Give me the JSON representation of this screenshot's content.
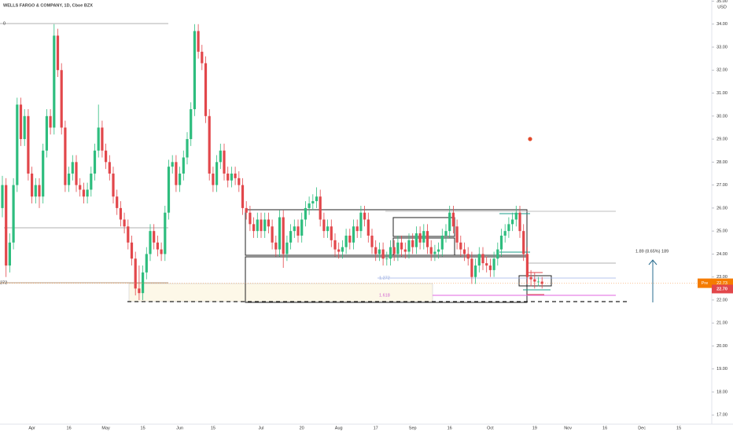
{
  "chart_data": {
    "type": "candlestick",
    "title": "WELLS FARGO & COMPANY, 1D, Cboe BZX",
    "currency": "USD",
    "categories": [
      null,
      null,
      null,
      null,
      null,
      null,
      null,
      null,
      "Apr",
      null,
      null,
      null,
      null,
      null,
      null,
      null,
      null,
      null,
      "16",
      null,
      null,
      null,
      null,
      null,
      null,
      null,
      null,
      null,
      "May",
      null,
      null,
      null,
      null,
      null,
      null,
      null,
      null,
      null,
      "15",
      null,
      null,
      null,
      null,
      null,
      null,
      null,
      null,
      null,
      "Jun",
      null,
      null,
      null,
      null,
      null,
      null,
      null,
      null,
      "15",
      null,
      null,
      null,
      null,
      null,
      null,
      null,
      null,
      null,
      null,
      null,
      null,
      "Jul",
      null,
      null,
      null,
      null,
      null,
      null,
      null,
      null,
      null,
      null,
      "20",
      null,
      null,
      null,
      null,
      null,
      null,
      null,
      null,
      null,
      "Aug",
      null,
      null,
      null,
      null,
      null,
      null,
      null,
      null,
      null,
      "17",
      null,
      null,
      null,
      null,
      null,
      null,
      null,
      null,
      null,
      "Sep",
      null,
      null,
      null,
      null,
      null,
      null,
      null,
      null,
      null,
      "16",
      null,
      null,
      null,
      null,
      null,
      null,
      null,
      null,
      null,
      null,
      "Oct",
      null,
      null,
      null,
      null,
      null,
      null,
      null,
      null,
      null,
      null,
      null,
      "19",
      null,
      null,
      null,
      null,
      null,
      null,
      null,
      null,
      "Nov",
      null,
      null,
      null,
      null,
      null,
      null,
      null,
      null,
      null,
      "16",
      null,
      null,
      null,
      null,
      null,
      null,
      null,
      null,
      null,
      "Dec",
      null,
      null,
      null,
      null,
      null,
      null,
      null,
      null,
      null,
      "15"
    ],
    "open": [
      26.0,
      27.0,
      23.5,
      24.5,
      27.0,
      30.5,
      29.0,
      30.0,
      27.5,
      26.5,
      27.0,
      26.5,
      28.5,
      30.0,
      29.5,
      33.5,
      32.0,
      29.5,
      27.0,
      27.5,
      28.0,
      27.0,
      26.8,
      26.5,
      26.8,
      27.5,
      28.5,
      29.5,
      28.5,
      28.0,
      27.5,
      26.5,
      26.0,
      25.5,
      25.2,
      24.5,
      23.8,
      22.5,
      22.3,
      23.2,
      24.0,
      25.0,
      24.5,
      24.2,
      24.0,
      25.8,
      27.8,
      28.0,
      27.0,
      27.5,
      28.2,
      29.0,
      30.3,
      33.7,
      32.8,
      32.3,
      30.0,
      27.5,
      27.0,
      28.0,
      28.5,
      27.5,
      27.2,
      27.5,
      27.3,
      27.0,
      26.0,
      25.8,
      25.3,
      25.0,
      25.5,
      25.0,
      25.5,
      25.2,
      24.5,
      24.2,
      25.6,
      24.0,
      24.5,
      25.0,
      25.2,
      24.8,
      25.5,
      26.0,
      26.2,
      26.3,
      26.5,
      25.5,
      25.0,
      25.2,
      24.6,
      24.2,
      24.1,
      24.3,
      24.8,
      24.5,
      25.2,
      25.0,
      25.8,
      25.5,
      24.8,
      24.3,
      24.0,
      24.2,
      23.8,
      23.8,
      24.3,
      24.0,
      24.5,
      24.2,
      24.1,
      24.6,
      24.3,
      24.9,
      24.5,
      25.0,
      24.3,
      24.0,
      24.1,
      24.2,
      24.8,
      25.0,
      25.8,
      25.2,
      24.5,
      24.2,
      24.0,
      23.8,
      23.0,
      23.5,
      24.0,
      23.6,
      23.5,
      23.3,
      23.8,
      24.2,
      24.8,
      25.0,
      25.3,
      25.5,
      25.8,
      25.0,
      24.0,
      23.0,
      22.9,
      22.8,
      22.8,
      null,
      null,
      null,
      null,
      null,
      null,
      null,
      null,
      null,
      null,
      null,
      null,
      null,
      null,
      null,
      null,
      null,
      null,
      null,
      null,
      null,
      null,
      null,
      null,
      null,
      null,
      null,
      null,
      null,
      null,
      null,
      null,
      null,
      null,
      null,
      null,
      null
    ],
    "high": [
      27.4,
      27.3,
      24.9,
      27.3,
      30.8,
      30.8,
      30.3,
      30.3,
      27.8,
      27.3,
      27.3,
      28.8,
      30.3,
      30.3,
      34.0,
      33.8,
      32.3,
      29.8,
      27.8,
      28.3,
      28.3,
      27.3,
      27.1,
      27.1,
      27.8,
      28.8,
      30.5,
      29.8,
      28.8,
      28.3,
      27.8,
      26.8,
      26.3,
      25.8,
      25.5,
      24.8,
      24.1,
      23.5,
      23.5,
      24.3,
      25.3,
      25.3,
      24.8,
      24.5,
      26.1,
      28.1,
      28.3,
      28.3,
      27.8,
      28.5,
      29.3,
      30.6,
      34.0,
      34.0,
      33.1,
      32.6,
      30.3,
      27.8,
      28.3,
      28.8,
      28.8,
      27.8,
      27.8,
      27.8,
      27.6,
      27.3,
      26.3,
      26.1,
      25.6,
      25.8,
      25.8,
      25.8,
      25.8,
      25.5,
      24.8,
      25.9,
      25.9,
      24.8,
      25.3,
      25.5,
      25.5,
      25.8,
      26.3,
      26.5,
      26.6,
      26.9,
      26.8,
      25.8,
      25.5,
      25.5,
      24.9,
      24.5,
      24.6,
      25.1,
      25.1,
      25.5,
      25.5,
      26.1,
      26.1,
      25.8,
      25.1,
      24.6,
      24.5,
      24.5,
      24.1,
      24.6,
      24.6,
      24.8,
      24.8,
      24.5,
      24.9,
      24.9,
      25.2,
      25.2,
      25.3,
      25.3,
      24.6,
      24.4,
      24.5,
      25.1,
      25.3,
      26.1,
      26.1,
      25.5,
      24.8,
      24.5,
      24.3,
      24.1,
      23.8,
      24.3,
      24.3,
      23.9,
      23.8,
      24.1,
      24.5,
      25.1,
      25.3,
      25.6,
      25.8,
      26.1,
      26.1,
      25.3,
      24.3,
      23.3,
      23.2,
      23.0,
      23.0,
      null,
      null,
      null,
      null,
      null,
      null,
      null,
      null,
      null,
      null,
      null,
      null,
      null,
      null,
      null,
      null,
      null,
      null,
      null,
      null,
      null,
      null,
      null,
      null,
      null,
      null,
      null,
      null,
      null,
      null,
      null,
      null,
      null,
      null,
      null,
      null,
      null
    ],
    "low": [
      25.6,
      23.0,
      23.2,
      24.2,
      26.7,
      28.7,
      28.7,
      27.2,
      26.2,
      26.2,
      26.0,
      26.2,
      28.2,
      29.2,
      29.2,
      31.7,
      29.2,
      26.7,
      26.7,
      27.2,
      26.7,
      26.5,
      26.2,
      26.2,
      26.5,
      27.2,
      28.2,
      28.2,
      27.7,
      27.2,
      26.2,
      25.7,
      25.2,
      24.9,
      24.2,
      23.5,
      22.2,
      22.0,
      22.0,
      22.9,
      23.7,
      24.2,
      23.9,
      23.7,
      23.7,
      25.5,
      27.5,
      26.7,
      26.7,
      27.2,
      27.9,
      28.7,
      30.0,
      32.5,
      32.0,
      29.7,
      27.2,
      26.7,
      26.7,
      27.7,
      27.2,
      26.9,
      26.9,
      27.0,
      26.7,
      25.7,
      25.5,
      25.0,
      24.7,
      24.7,
      24.7,
      24.7,
      24.9,
      24.2,
      23.9,
      23.9,
      23.4,
      23.7,
      24.2,
      24.7,
      24.5,
      24.5,
      25.2,
      25.7,
      25.9,
      26.0,
      25.2,
      24.7,
      24.7,
      24.3,
      23.9,
      23.8,
      23.8,
      24.0,
      24.2,
      24.2,
      24.7,
      24.7,
      25.2,
      24.5,
      24.0,
      23.7,
      23.7,
      23.5,
      23.5,
      23.5,
      23.7,
      23.7,
      23.9,
      23.8,
      23.8,
      24.0,
      24.0,
      24.2,
      24.2,
      24.0,
      23.7,
      23.7,
      23.8,
      23.9,
      24.5,
      24.7,
      24.9,
      24.2,
      23.9,
      23.7,
      23.5,
      22.7,
      22.7,
      23.2,
      23.3,
      23.2,
      23.0,
      23.0,
      23.5,
      23.9,
      24.5,
      24.7,
      25.0,
      25.2,
      24.7,
      23.7,
      22.7,
      22.6,
      22.5,
      22.6,
      22.5,
      null,
      null,
      null,
      null,
      null,
      null,
      null,
      null,
      null,
      null,
      null,
      null,
      null,
      null,
      null,
      null,
      null,
      null,
      null,
      null,
      null,
      null,
      null,
      null,
      null,
      null,
      null,
      null,
      null,
      null,
      null,
      null,
      null,
      null,
      null,
      null,
      null
    ],
    "close": [
      27.0,
      23.5,
      24.5,
      27.0,
      30.5,
      29.0,
      30.0,
      27.5,
      26.5,
      27.0,
      26.5,
      28.5,
      30.0,
      29.5,
      33.5,
      32.0,
      29.5,
      27.0,
      27.5,
      28.0,
      27.0,
      26.8,
      26.5,
      26.8,
      27.5,
      28.5,
      29.5,
      28.5,
      28.0,
      27.5,
      26.5,
      26.0,
      25.5,
      25.2,
      24.5,
      23.8,
      22.5,
      22.3,
      23.2,
      24.0,
      25.0,
      24.5,
      24.2,
      24.0,
      25.8,
      27.8,
      28.0,
      27.0,
      27.5,
      28.2,
      29.0,
      30.3,
      33.7,
      32.8,
      32.3,
      30.0,
      27.5,
      27.0,
      28.0,
      28.5,
      27.5,
      27.2,
      27.5,
      27.3,
      27.0,
      26.0,
      25.8,
      25.3,
      25.0,
      25.5,
      25.0,
      25.5,
      25.2,
      24.5,
      24.2,
      25.6,
      24.0,
      24.5,
      25.0,
      25.2,
      24.8,
      25.5,
      26.0,
      26.2,
      26.3,
      26.5,
      25.5,
      25.0,
      25.2,
      24.6,
      24.2,
      24.1,
      24.3,
      24.8,
      24.5,
      25.2,
      25.0,
      25.8,
      25.5,
      24.8,
      24.3,
      24.0,
      24.2,
      23.8,
      23.8,
      24.3,
      24.0,
      24.5,
      24.2,
      24.1,
      24.6,
      24.3,
      24.9,
      24.5,
      25.0,
      24.3,
      24.0,
      24.1,
      24.2,
      24.8,
      25.0,
      25.8,
      25.2,
      24.5,
      24.2,
      24.0,
      23.8,
      23.0,
      23.5,
      24.0,
      23.6,
      23.5,
      23.3,
      23.8,
      24.2,
      24.8,
      25.0,
      25.3,
      25.5,
      25.8,
      25.0,
      24.0,
      23.0,
      22.9,
      22.8,
      22.8,
      22.7,
      null,
      null,
      null,
      null,
      null,
      null,
      null,
      null,
      null,
      null,
      null,
      null,
      null,
      null,
      null,
      null,
      null,
      null,
      null,
      null,
      null,
      null,
      null,
      null,
      null,
      null,
      null,
      null,
      null,
      null,
      null,
      null,
      null,
      null,
      null,
      null,
      null
    ],
    "up_color": "#2ebd7e",
    "down_color": "#e2474b",
    "ylim": [
      16.6,
      35.05
    ],
    "yticks": [
      {
        "value": 17,
        "label": "17.00"
      },
      {
        "value": 18,
        "label": "18.00"
      },
      {
        "value": 19,
        "label": "19.00"
      },
      {
        "value": 20,
        "label": "20.00"
      },
      {
        "value": 21,
        "label": "21.00"
      },
      {
        "value": 22,
        "label": "22.00"
      },
      {
        "value": 23,
        "label": "23.00"
      },
      {
        "value": 24,
        "label": "24.00"
      },
      {
        "value": 25,
        "label": "25.00"
      },
      {
        "value": 26,
        "label": "26.00"
      },
      {
        "value": 27,
        "label": "27.00"
      },
      {
        "value": 28,
        "label": "28.00"
      },
      {
        "value": 29,
        "label": "29.00"
      },
      {
        "value": 30,
        "label": "30.00"
      },
      {
        "value": 31,
        "label": "31.00"
      },
      {
        "value": 32,
        "label": "32.00"
      },
      {
        "value": 33,
        "label": "33.00"
      },
      {
        "value": 34,
        "label": "34.00"
      },
      {
        "value": 35,
        "label": "35.00"
      }
    ],
    "premarket": {
      "tag": "Pre",
      "value": 22.73,
      "label": "22.73"
    },
    "last_price": {
      "value": 22.7,
      "label": "22.70"
    },
    "annotations": [
      "1.89 (8.65%) 189"
    ],
    "drawing_labels": [
      "0",
      "272",
      "1.272",
      "1.618"
    ]
  }
}
